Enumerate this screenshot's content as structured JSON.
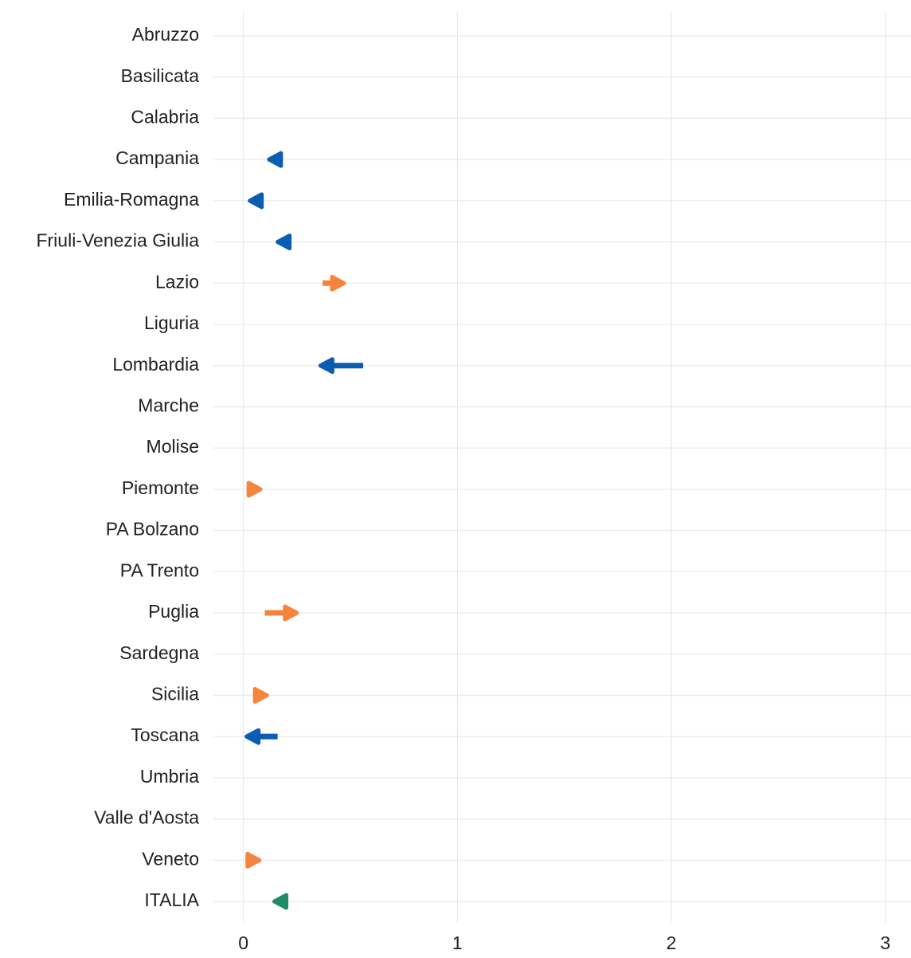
{
  "chart_data": {
    "type": "arrow",
    "categories": [
      "Abruzzo",
      "Basilicata",
      "Calabria",
      "Campania",
      "Emilia-Romagna",
      "Friuli-Venezia Giulia",
      "Lazio",
      "Liguria",
      "Lombardia",
      "Marche",
      "Molise",
      "Piemonte",
      "PA Bolzano",
      "PA Trento",
      "Puglia",
      "Sardegna",
      "Sicilia",
      "Toscana",
      "Umbria",
      "Valle d'Aosta",
      "Veneto",
      "ITALIA"
    ],
    "start": [
      null,
      null,
      null,
      0.175,
      0.08,
      0.22,
      0.37,
      null,
      0.56,
      null,
      null,
      0.02,
      null,
      null,
      0.1,
      null,
      0.045,
      0.16,
      null,
      null,
      0.01,
      0.21
    ],
    "end": [
      null,
      null,
      null,
      0.12,
      0.03,
      0.16,
      0.47,
      null,
      0.36,
      null,
      null,
      0.08,
      null,
      null,
      0.25,
      null,
      0.11,
      0.015,
      null,
      null,
      0.075,
      0.145
    ],
    "colors": [
      null,
      null,
      null,
      "#0b5db3",
      "#0b5db3",
      "#0b5db3",
      "#f5843d",
      null,
      "#0b5db3",
      null,
      null,
      "#f5843d",
      null,
      null,
      "#f5843d",
      null,
      "#f5843d",
      "#0b5db3",
      null,
      null,
      "#f5843d",
      "#1e8c67"
    ],
    "xlim": [
      -0.14,
      3.12
    ],
    "xticks": [
      0,
      1,
      2,
      3
    ],
    "grid": true
  }
}
